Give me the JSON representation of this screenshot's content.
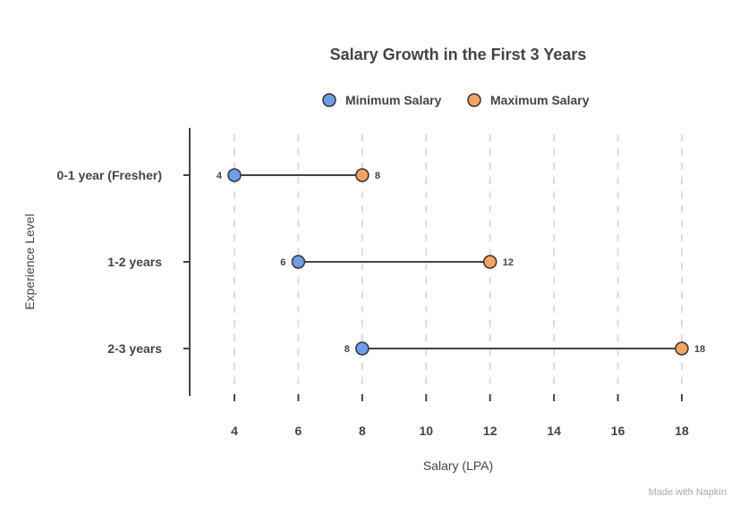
{
  "chart_data": {
    "type": "dumbbell",
    "title": "Salary Growth in the First 3 Years",
    "xlabel": "Salary (LPA)",
    "ylabel": "Experience Level",
    "categories": [
      "0-1 year (Fresher)",
      "1-2 years",
      "2-3 years"
    ],
    "series": [
      {
        "name": "Minimum Salary",
        "values": [
          4,
          6,
          8
        ],
        "color": "#6f9de8"
      },
      {
        "name": "Maximum Salary",
        "values": [
          8,
          12,
          18
        ],
        "color": "#f4a462"
      }
    ],
    "xticks": [
      4,
      6,
      8,
      10,
      12,
      14,
      16,
      18
    ],
    "xtick_labels": [
      "4",
      "6",
      "8",
      "10",
      "12",
      "14",
      "16",
      "18"
    ],
    "xlim": [
      2.6,
      19
    ],
    "grid": "vertical dashed",
    "legend": "top"
  },
  "footer": {
    "watermark": "Made with Napkin"
  }
}
